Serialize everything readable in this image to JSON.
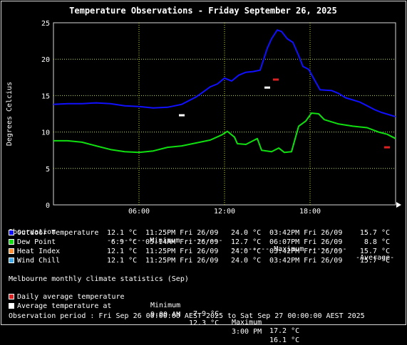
{
  "title": "Temperature Observations - Friday September 26, 2025",
  "colors": {
    "outdoor": "#1010ff",
    "dew": "#10e010",
    "heat": "#ff8c30",
    "chill": "#3fa8e8",
    "monthly_avg": "#e02020",
    "avg_at": "#ffffff",
    "grid": "#c8e040"
  },
  "chart_data": {
    "type": "line",
    "title": "Temperature Observations - Friday September 26, 2025",
    "ylabel": "Degrees Celcius",
    "xlabel": "",
    "ylim": [
      0,
      25
    ],
    "xlim": [
      0,
      24
    ],
    "y_ticks": [
      "0",
      "5",
      "10",
      "15",
      "20",
      "25"
    ],
    "x_ticks": [
      {
        "value": 6,
        "label": "06:00"
      },
      {
        "value": 12,
        "label": "12:00"
      },
      {
        "value": 18,
        "label": "18:00"
      }
    ],
    "grid": true,
    "series": [
      {
        "name": "Outdoor Temperature",
        "color_key": "outdoor",
        "points": [
          [
            0,
            13.8
          ],
          [
            1,
            13.9
          ],
          [
            2,
            13.9
          ],
          [
            3,
            14.0
          ],
          [
            4,
            13.9
          ],
          [
            5,
            13.6
          ],
          [
            6,
            13.5
          ],
          [
            7,
            13.3
          ],
          [
            8,
            13.4
          ],
          [
            9,
            13.8
          ],
          [
            10,
            14.8
          ],
          [
            10.5,
            15.5
          ],
          [
            11,
            16.2
          ],
          [
            11.5,
            16.6
          ],
          [
            12,
            17.4
          ],
          [
            12.5,
            17.0
          ],
          [
            13,
            17.8
          ],
          [
            13.5,
            18.2
          ],
          [
            14,
            18.3
          ],
          [
            14.5,
            18.5
          ],
          [
            15,
            21.5
          ],
          [
            15.3,
            22.8
          ],
          [
            15.7,
            24.0
          ],
          [
            16,
            23.8
          ],
          [
            16.4,
            22.8
          ],
          [
            16.8,
            22.3
          ],
          [
            17.2,
            20.5
          ],
          [
            17.5,
            19.0
          ],
          [
            17.9,
            18.6
          ],
          [
            18.3,
            17.2
          ],
          [
            18.7,
            15.8
          ],
          [
            19.5,
            15.7
          ],
          [
            20,
            15.3
          ],
          [
            20.5,
            14.7
          ],
          [
            21,
            14.4
          ],
          [
            21.5,
            14.1
          ],
          [
            22,
            13.6
          ],
          [
            22.5,
            13.1
          ],
          [
            23,
            12.7
          ],
          [
            23.5,
            12.4
          ],
          [
            24,
            12.1
          ]
        ]
      },
      {
        "name": "Dew Point",
        "color_key": "dew",
        "points": [
          [
            0,
            8.8
          ],
          [
            1,
            8.8
          ],
          [
            2,
            8.6
          ],
          [
            3,
            8.1
          ],
          [
            4,
            7.6
          ],
          [
            5,
            7.3
          ],
          [
            6,
            7.2
          ],
          [
            7,
            7.4
          ],
          [
            8,
            7.9
          ],
          [
            9,
            8.1
          ],
          [
            10,
            8.5
          ],
          [
            11,
            8.9
          ],
          [
            11.8,
            9.6
          ],
          [
            12.2,
            10.1
          ],
          [
            12.7,
            9.3
          ],
          [
            12.9,
            8.4
          ],
          [
            13.5,
            8.3
          ],
          [
            14,
            8.8
          ],
          [
            14.3,
            9.1
          ],
          [
            14.6,
            7.5
          ],
          [
            15.3,
            7.3
          ],
          [
            15.8,
            7.8
          ],
          [
            16.2,
            7.2
          ],
          [
            16.7,
            7.3
          ],
          [
            17.2,
            10.8
          ],
          [
            17.7,
            11.5
          ],
          [
            18.1,
            12.6
          ],
          [
            18.6,
            12.5
          ],
          [
            19,
            11.7
          ],
          [
            20,
            11.1
          ],
          [
            21,
            10.8
          ],
          [
            22,
            10.6
          ],
          [
            22.8,
            10.0
          ],
          [
            23.4,
            9.7
          ],
          [
            24,
            9.1
          ]
        ]
      },
      {
        "name": "Monthly daily average",
        "color_key": "monthly_avg",
        "points": [
          [
            15.6,
            17.2
          ],
          [
            23.4,
            7.9
          ]
        ]
      },
      {
        "name": "Average temperature at",
        "color_key": "avg_at",
        "points": [
          [
            9.0,
            12.3
          ],
          [
            15.0,
            16.1
          ]
        ]
      }
    ]
  },
  "legend": {
    "header": {
      "observation": "Observation",
      "minimum": "--------- Minimum ---------",
      "maximum": "--------- Maximum ---------",
      "average": "-Average-"
    },
    "rows": [
      {
        "label": "Outdoor Temperature",
        "color_key": "outdoor",
        "min_val": "12.1 °C",
        "min_time": "11:25PM Fri 26/09",
        "max_val": "24.0 °C",
        "max_time": "03:42PM Fri 26/09",
        "avg": "15.7 °C"
      },
      {
        "label": "Dew Point",
        "color_key": "dew",
        "min_val": "6.9 °C",
        "min_time": "05:14AM Fri 26/09",
        "max_val": "12.7 °C",
        "max_time": "06:07PM Fri 26/09",
        "avg": "8.8 °C"
      },
      {
        "label": "Heat Index",
        "color_key": "heat",
        "min_val": "12.1 °C",
        "min_time": "11:25PM Fri 26/09",
        "max_val": "24.0 °C",
        "max_time": "03:42PM Fri 26/09",
        "avg": "15.7 °C"
      },
      {
        "label": "Wind Chill",
        "color_key": "chill",
        "min_val": "12.1 °C",
        "min_time": "11:25PM Fri 26/09",
        "max_val": "24.0 °C",
        "max_time": "03:42PM Fri 26/09",
        "avg": "15.7 °C"
      }
    ]
  },
  "climate": {
    "heading": "Melbourne monthly climate statistics (Sep)",
    "daily_label": "Daily average temperature",
    "daily_min_label": "Minimum",
    "daily_min": "7.9 °C",
    "daily_max_label": "Maximum",
    "daily_max": "17.2 °C",
    "avg_label": "Average temperature at",
    "avg_time1": "9:00 AM",
    "avg_val1": "12.3 °C",
    "avg_time2": "3:00 PM",
    "avg_val2": "16.1 °C"
  },
  "period": "Observation period : Fri Sep 26 00:00:00 AEST 2025 to Sat Sep 27 00:00:00 AEST 2025"
}
